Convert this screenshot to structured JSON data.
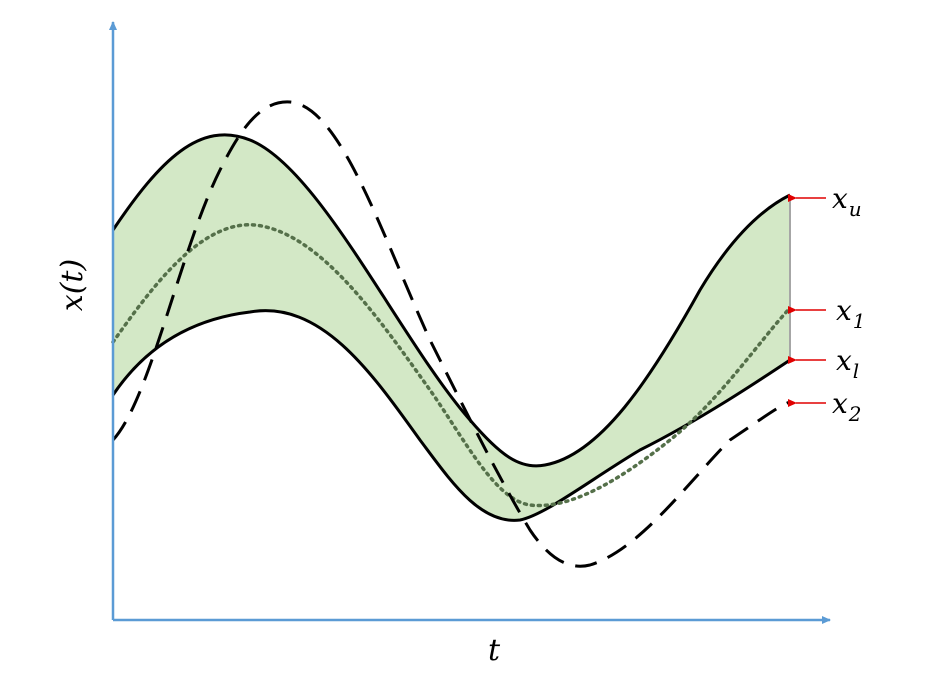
{
  "axes": {
    "x_label": "t",
    "y_label": "x(t)",
    "color": "#5b9bd5"
  },
  "band": {
    "fill": "#d3e8c6",
    "outline": "#a6a6a6"
  },
  "curves": {
    "upper": {
      "base": "x",
      "sub": "u",
      "color": "#000000"
    },
    "middle": {
      "base": "x",
      "sub": "1",
      "color": "#55704a"
    },
    "lower": {
      "base": "x",
      "sub": "l",
      "color": "#000000"
    },
    "dashed": {
      "base": "x",
      "sub": "2",
      "color": "#000000"
    }
  },
  "pointer_arrows": {
    "color": "#e00000"
  }
}
